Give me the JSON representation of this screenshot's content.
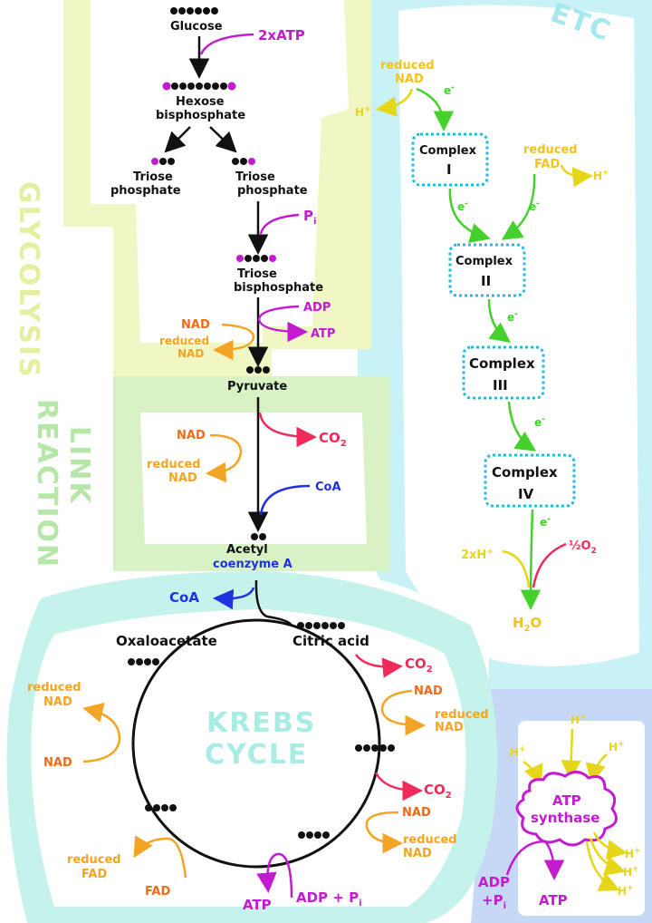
{
  "sections": {
    "glycolysis": "GLYCOLYSIS",
    "link_line1": "LINK",
    "link_line2": "REACTION",
    "krebs_line1": "KREBS",
    "krebs_line2": "CYCLE",
    "etc": "ETC"
  },
  "glycolysis": {
    "glucose": "Glucose",
    "atp_in": "2xATP",
    "hexose_line1": "Hexose",
    "hexose_line2": "bisphosphate",
    "triose_left_line1": "Triose",
    "triose_left_line2": "phosphate",
    "triose_right_line1": "Triose",
    "triose_right_line2": "phosphate",
    "pi": "P",
    "pi_sub": "i",
    "tbp_line1": "Triose",
    "tbp_line2": "bisphosphate",
    "adp": "ADP",
    "atp_out": "ATP",
    "nad": "NAD",
    "reduced_line1": "reduced",
    "reduced_line2": "NAD",
    "pyruvate": "Pyruvate"
  },
  "link": {
    "co2": "CO",
    "co2_sub": "2",
    "nad": "NAD",
    "reduced_line1": "reduced",
    "reduced_line2": "NAD",
    "coa": "CoA",
    "acetyl_line1": "Acetyl",
    "acetyl_line2": "coenzyme A"
  },
  "krebs": {
    "coa_out": "CoA",
    "oxaloacetate": "Oxaloacetate",
    "citric_acid": "Citric acid",
    "co2_a": "CO",
    "co2_a_sub": "2",
    "nad_a": "NAD",
    "reduced_a_line1": "reduced",
    "reduced_a_line2": "NAD",
    "co2_b": "CO",
    "co2_b_sub": "2",
    "nad_b": "NAD",
    "reduced_b_line1": "reduced",
    "reduced_b_line2": "NAD",
    "reduced_left_line1": "reduced",
    "reduced_left_line2": "NAD",
    "nad_left": "NAD",
    "reduced_fad_line1": "reduced",
    "reduced_fad_line2": "FAD",
    "fad": "FAD",
    "atp": "ATP",
    "adp_pi": "ADP + P",
    "adp_pi_sub": "i"
  },
  "etc": {
    "reduced_nad_line1": "reduced",
    "reduced_nad_line2": "NAD",
    "h_plus": "H",
    "electron": "e",
    "complex_1": "Complex",
    "complex_1_num": "I",
    "reduced_fad_line1": "reduced",
    "reduced_fad_line2": "FAD",
    "complex_2": "Complex",
    "complex_2_num": "II",
    "complex_3": "Complex",
    "complex_3_num": "III",
    "complex_4": "Complex",
    "complex_4_num": "IV",
    "two_h": "2xH",
    "half_o2": "½O",
    "o2_sub": "2",
    "water": "H",
    "water_sub": "2",
    "water_o": "O"
  },
  "atp_synthase": {
    "line1": "ATP",
    "line2": "synthase",
    "adp_line1": "ADP",
    "adp_line2": "+P",
    "adp_sub": "i",
    "atp": "ATP",
    "h_plus": "H"
  },
  "colors": {
    "glycolysis_band": "#f1f7c4",
    "link_band": "#d8f2c6",
    "krebs_band": "#c6f2ec",
    "etc_band": "#c8f2f6",
    "synthase_band": "#c6d8f5",
    "black": "#111111",
    "purple": "#c21bd0",
    "orange": "#f4a424",
    "red_orange": "#f06a1a",
    "gold": "#f2c31b",
    "red": "#ee2b5a",
    "blue": "#1e32e0",
    "green": "#45d12b",
    "yellow": "#f0e022",
    "cyan": "#27b8dd"
  }
}
